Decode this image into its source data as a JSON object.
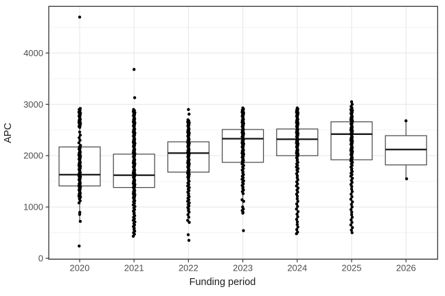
{
  "chart_data": {
    "type": "boxplot",
    "title": "",
    "xlabel": "Funding period",
    "ylabel": "APC",
    "categories": [
      "2020",
      "2021",
      "2022",
      "2023",
      "2024",
      "2025",
      "2026"
    ],
    "y_ticks": [
      0,
      1000,
      2000,
      3000,
      4000
    ],
    "y_minor_ticks": [
      500,
      1500,
      2500,
      3500,
      4500
    ],
    "ylim": [
      0,
      4900
    ],
    "grid": "major-and-minor",
    "legend": "none",
    "boxes": [
      {
        "category": "2020",
        "whisker_low": 730,
        "q1": 1410,
        "median": 1630,
        "q3": 2170,
        "whisker_high": 2920,
        "points": [
          4700,
          2920,
          2900,
          2880,
          2850,
          2830,
          2810,
          2790,
          2770,
          2750,
          2730,
          2710,
          2690,
          2670,
          2650,
          2630,
          2610,
          2590,
          2570,
          2550,
          2460,
          2400,
          2350,
          2300,
          2250,
          2200,
          2170,
          2150,
          2130,
          2110,
          2090,
          2070,
          2050,
          2030,
          2010,
          1990,
          1970,
          1950,
          1930,
          1910,
          1890,
          1870,
          1850,
          1830,
          1810,
          1790,
          1770,
          1750,
          1730,
          1710,
          1690,
          1670,
          1650,
          1630,
          1610,
          1590,
          1570,
          1550,
          1530,
          1510,
          1490,
          1470,
          1450,
          1430,
          1410,
          1390,
          1370,
          1350,
          1330,
          1310,
          1290,
          1270,
          1250,
          1230,
          1210,
          1190,
          1160,
          1120,
          1080,
          895,
          855,
          720,
          240
        ]
      },
      {
        "category": "2021",
        "whisker_low": 430,
        "q1": 1380,
        "median": 1620,
        "q3": 2030,
        "whisker_high": 2900,
        "points": [
          3680,
          3130,
          2900,
          2880,
          2860,
          2840,
          2820,
          2800,
          2780,
          2760,
          2740,
          2720,
          2700,
          2680,
          2660,
          2640,
          2620,
          2600,
          2580,
          2560,
          2540,
          2520,
          2500,
          2480,
          2460,
          2440,
          2420,
          2400,
          2380,
          2360,
          2340,
          2320,
          2300,
          2280,
          2260,
          2240,
          2220,
          2200,
          2180,
          2160,
          2140,
          2120,
          2100,
          2080,
          2060,
          2040,
          2020,
          2000,
          1980,
          1960,
          1940,
          1920,
          1900,
          1880,
          1860,
          1840,
          1820,
          1800,
          1780,
          1760,
          1740,
          1720,
          1700,
          1680,
          1660,
          1640,
          1620,
          1600,
          1580,
          1560,
          1540,
          1520,
          1500,
          1480,
          1460,
          1440,
          1420,
          1400,
          1380,
          1360,
          1340,
          1320,
          1300,
          1280,
          1260,
          1240,
          1220,
          1200,
          1180,
          1160,
          1140,
          1120,
          1100,
          1070,
          1040,
          1010,
          980,
          950,
          920,
          890,
          860,
          830,
          800,
          770,
          740,
          710,
          680,
          650,
          620,
          590,
          560,
          530,
          500,
          470,
          430
        ]
      },
      {
        "category": "2022",
        "whisker_low": 850,
        "q1": 1680,
        "median": 2050,
        "q3": 2270,
        "whisker_high": 2700,
        "points": [
          2900,
          2810,
          2700,
          2680,
          2660,
          2640,
          2620,
          2600,
          2580,
          2560,
          2540,
          2520,
          2500,
          2480,
          2460,
          2440,
          2420,
          2400,
          2380,
          2360,
          2340,
          2320,
          2300,
          2280,
          2260,
          2240,
          2220,
          2200,
          2180,
          2160,
          2140,
          2120,
          2100,
          2080,
          2060,
          2040,
          2020,
          2000,
          1980,
          1960,
          1940,
          1920,
          1900,
          1880,
          1860,
          1840,
          1820,
          1800,
          1780,
          1760,
          1740,
          1720,
          1700,
          1680,
          1660,
          1640,
          1620,
          1600,
          1580,
          1560,
          1530,
          1500,
          1470,
          1440,
          1410,
          1380,
          1350,
          1320,
          1290,
          1260,
          1230,
          1200,
          1170,
          1140,
          1110,
          1080,
          1050,
          1020,
          990,
          960,
          930,
          900,
          850,
          800,
          740,
          700,
          460,
          350
        ]
      },
      {
        "category": "2023",
        "whisker_low": 1000,
        "q1": 1870,
        "median": 2330,
        "q3": 2510,
        "whisker_high": 2930,
        "points": [
          2930,
          2910,
          2890,
          2870,
          2850,
          2830,
          2810,
          2790,
          2770,
          2750,
          2730,
          2710,
          2690,
          2670,
          2650,
          2630,
          2610,
          2590,
          2570,
          2550,
          2530,
          2510,
          2490,
          2470,
          2450,
          2430,
          2410,
          2390,
          2370,
          2350,
          2330,
          2310,
          2290,
          2270,
          2250,
          2230,
          2210,
          2190,
          2170,
          2150,
          2130,
          2110,
          2090,
          2070,
          2050,
          2030,
          2010,
          1990,
          1970,
          1950,
          1930,
          1910,
          1890,
          1870,
          1840,
          1810,
          1780,
          1750,
          1720,
          1690,
          1660,
          1630,
          1600,
          1570,
          1540,
          1510,
          1480,
          1450,
          1420,
          1390,
          1360,
          1330,
          1300,
          1260,
          1140,
          1110,
          1000,
          960,
          930,
          900,
          880,
          540
        ]
      },
      {
        "category": "2024",
        "whisker_low": 1260,
        "q1": 2000,
        "median": 2320,
        "q3": 2520,
        "whisker_high": 2930,
        "points": [
          2930,
          2910,
          2890,
          2870,
          2850,
          2830,
          2810,
          2790,
          2770,
          2750,
          2730,
          2710,
          2690,
          2670,
          2650,
          2630,
          2610,
          2590,
          2570,
          2550,
          2530,
          2510,
          2490,
          2470,
          2450,
          2430,
          2410,
          2390,
          2370,
          2350,
          2330,
          2310,
          2290,
          2270,
          2250,
          2230,
          2210,
          2190,
          2170,
          2150,
          2130,
          2110,
          2090,
          2070,
          2050,
          2030,
          2010,
          1990,
          1960,
          1930,
          1900,
          1870,
          1840,
          1810,
          1780,
          1750,
          1720,
          1690,
          1650,
          1610,
          1570,
          1530,
          1490,
          1450,
          1410,
          1370,
          1330,
          1290,
          1250,
          1210,
          1160,
          1110,
          1060,
          1010,
          960,
          910,
          860,
          810,
          760,
          710,
          660,
          610,
          560,
          510,
          480
        ]
      },
      {
        "category": "2025",
        "whisker_low": 850,
        "q1": 1920,
        "median": 2420,
        "q3": 2660,
        "whisker_high": 3050,
        "points": [
          3050,
          3000,
          2960,
          2930,
          2900,
          2880,
          2860,
          2840,
          2820,
          2800,
          2780,
          2760,
          2740,
          2720,
          2700,
          2680,
          2660,
          2640,
          2620,
          2600,
          2580,
          2560,
          2540,
          2520,
          2500,
          2480,
          2460,
          2440,
          2420,
          2400,
          2380,
          2360,
          2340,
          2320,
          2300,
          2280,
          2260,
          2240,
          2220,
          2200,
          2180,
          2160,
          2140,
          2120,
          2100,
          2080,
          2060,
          2040,
          2020,
          2000,
          1980,
          1960,
          1940,
          1920,
          1900,
          1870,
          1840,
          1810,
          1780,
          1750,
          1720,
          1690,
          1660,
          1630,
          1600,
          1560,
          1520,
          1480,
          1440,
          1400,
          1350,
          1300,
          1250,
          1200,
          1150,
          1100,
          1050,
          1000,
          950,
          900,
          850,
          800,
          750,
          700,
          650,
          600,
          550,
          500
        ]
      },
      {
        "category": "2026",
        "whisker_low": 1550,
        "q1": 1820,
        "median": 2120,
        "q3": 2390,
        "whisker_high": 2680,
        "points": [
          2680,
          1550
        ]
      }
    ],
    "colors": {
      "point": "#000000",
      "box_border": "#4a4a4a",
      "box_fill": "#ffffff",
      "median_line": "#1f1f1f",
      "whisker": "#4a4a4a",
      "panel_border": "#333333",
      "grid_major": "#e8e8e8",
      "grid_minor": "#f3f3f3",
      "axis_text": "#4d4d4d",
      "axis_title": "#1a1a1a",
      "background": "#ffffff"
    }
  }
}
